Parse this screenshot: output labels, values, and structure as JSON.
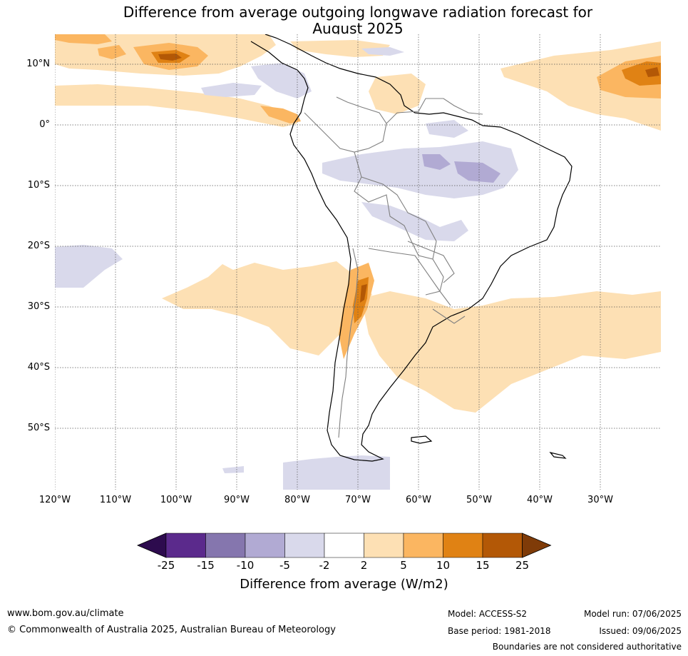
{
  "title_line1": "Difference from average outgoing longwave radiation forecast for",
  "title_line2": "August 2025",
  "latitude_labels": [
    "10°N",
    "0°",
    "10°S",
    "20°S",
    "30°S",
    "40°S",
    "50°S"
  ],
  "longitude_labels": [
    "120°W",
    "110°W",
    "100°W",
    "90°W",
    "80°W",
    "70°W",
    "60°W",
    "50°W",
    "40°W",
    "30°W"
  ],
  "colorbar": {
    "title": "Difference from average (W/m2)",
    "tick_labels": [
      "-25",
      "-15",
      "-10",
      "-5",
      "-2",
      "2",
      "5",
      "10",
      "15",
      "25"
    ],
    "colors": [
      "#2d0b4e",
      "#5b2a8c",
      "#8576ae",
      "#b1aad3",
      "#d9d9eb",
      "#ffffff",
      "#fde0b4",
      "#fbb661",
      "#e08214",
      "#b35806",
      "#7f3b08"
    ]
  },
  "footer": {
    "website": "www.bom.gov.au/climate",
    "copyright": "© Commonwealth of Australia 2025, Australian Bureau of Meteorology",
    "model": "Model: ACCESS-S2",
    "base_period": "Base period: 1981-2018",
    "model_run": "Model run: 07/06/2025",
    "issued": "Issued: 09/06/2025",
    "disclaimer": "Boundaries are not considered authoritative"
  }
}
